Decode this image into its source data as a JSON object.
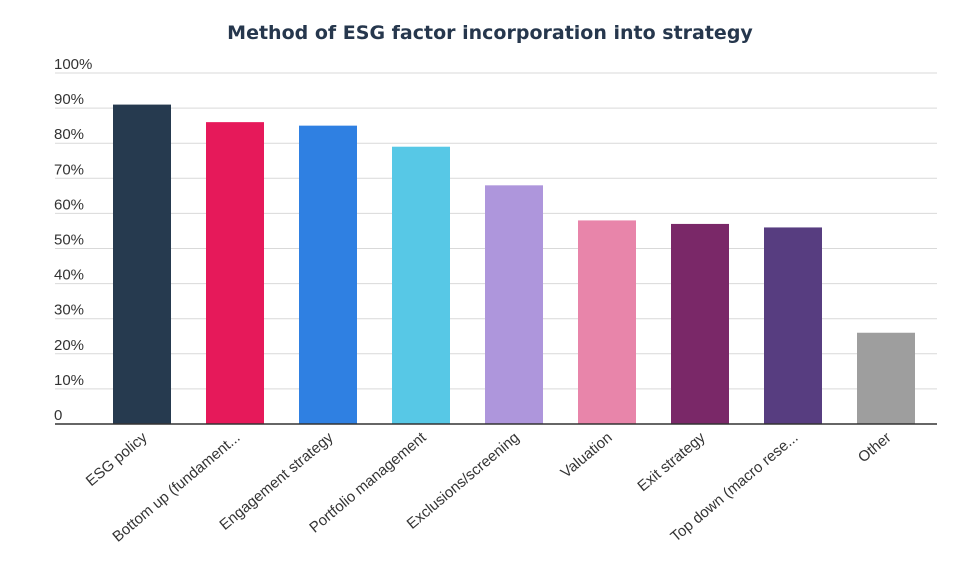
{
  "chart_data": {
    "type": "bar",
    "title": "Method of ESG factor incorporation into strategy",
    "xlabel": "",
    "ylabel": "",
    "ylim": [
      0,
      100
    ],
    "y_ticks": [
      "0",
      "10%",
      "20%",
      "30%",
      "40%",
      "50%",
      "60%",
      "70%",
      "80%",
      "90%",
      "100%"
    ],
    "grid": true,
    "categories": [
      "ESG policy",
      "Bottom up (fundament...",
      "Engagement strategy",
      "Portfolio management",
      "Exclusions/screening",
      "Valuation",
      "Exit strategy",
      "Top down (macro rese...",
      "Other"
    ],
    "values": [
      91,
      86,
      85,
      79,
      68,
      58,
      57,
      56,
      26
    ],
    "colors": [
      "#263a4f",
      "#e6195a",
      "#2f80e2",
      "#57c8e6",
      "#ae96dc",
      "#e885aa",
      "#7a2868",
      "#573d80",
      "#9e9e9e"
    ]
  }
}
